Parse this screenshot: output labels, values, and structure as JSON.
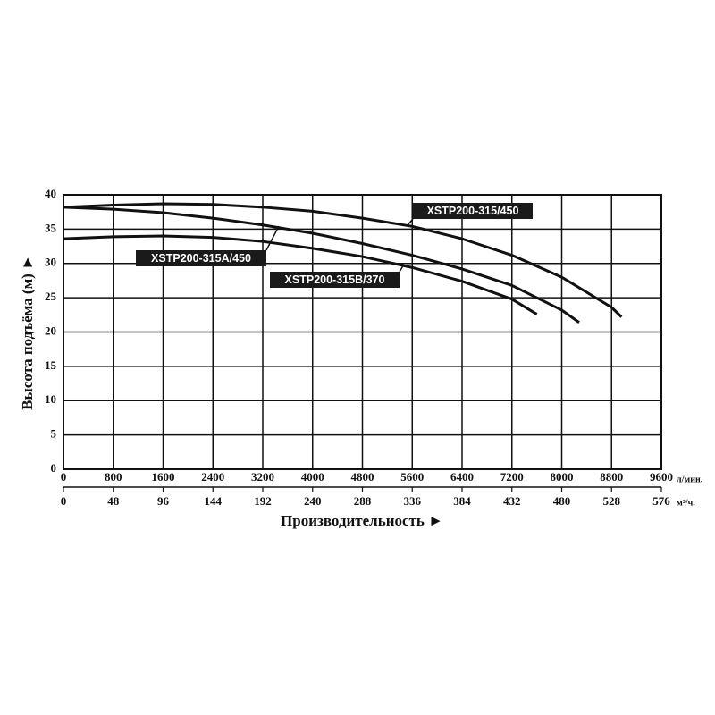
{
  "chart_data": {
    "type": "line",
    "ylabel": "Высота подъёма (м) ►",
    "xlabel": "Производительность ►",
    "xunit": "л/мин.",
    "x2unit": "м³/ч.",
    "xlim": [
      0,
      9600
    ],
    "xticks": [
      0,
      800,
      1600,
      2400,
      3200,
      4000,
      4800,
      5600,
      6400,
      7200,
      8000,
      8800,
      9600
    ],
    "x2lim": [
      0,
      576
    ],
    "x2ticks": [
      0,
      48,
      96,
      144,
      192,
      240,
      288,
      336,
      384,
      432,
      480,
      528,
      576
    ],
    "ylim": [
      0,
      40
    ],
    "yticks": [
      0,
      5,
      10,
      15,
      20,
      25,
      30,
      35,
      40
    ],
    "grid": true,
    "series": [
      {
        "name": "XSTP200-315/450",
        "color": "#111111",
        "x": [
          0,
          800,
          1600,
          2400,
          3200,
          4000,
          4800,
          5600,
          6400,
          7200,
          8000,
          8800,
          8960
        ],
        "values": [
          38.2,
          38.5,
          38.7,
          38.6,
          38.2,
          37.6,
          36.6,
          35.4,
          33.6,
          31.2,
          28.0,
          23.6,
          22.2
        ]
      },
      {
        "name": "XSTP200-315A/450",
        "color": "#111111",
        "x": [
          0,
          800,
          1600,
          2400,
          3200,
          4000,
          4800,
          5600,
          6400,
          7200,
          8000,
          8280
        ],
        "values": [
          38.2,
          37.9,
          37.4,
          36.6,
          35.6,
          34.4,
          32.9,
          31.2,
          29.2,
          26.8,
          23.2,
          21.4
        ]
      },
      {
        "name": "XSTP200-315B/370",
        "color": "#111111",
        "x": [
          0,
          800,
          1600,
          2400,
          3200,
          4000,
          4800,
          5600,
          6400,
          7200,
          7600
        ],
        "values": [
          33.6,
          33.9,
          34.0,
          33.8,
          33.2,
          32.2,
          31.0,
          29.4,
          27.4,
          24.8,
          22.6
        ]
      }
    ]
  }
}
